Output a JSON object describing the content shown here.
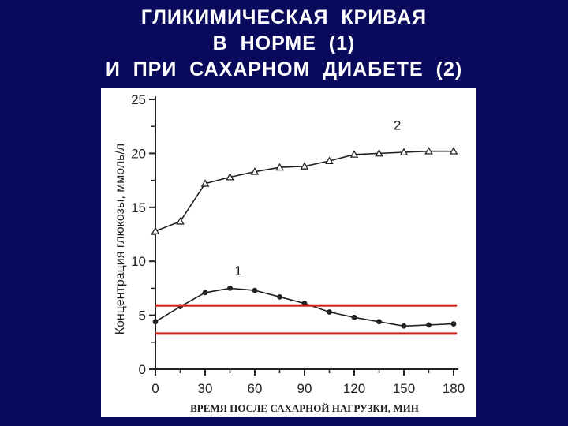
{
  "title": {
    "line1": "ГЛИКИМИЧЕСКАЯ  КРИВАЯ",
    "line2": "В  НОРМЕ  (1)",
    "line3": "И  ПРИ  САХАРНОМ  ДИАБЕТЕ  (2)"
  },
  "colors": {
    "background": "#0a0a5c",
    "title_text": "#ffffff",
    "panel": "#ffffff",
    "ink": "#222222",
    "reference_lines": "#d9231d"
  },
  "chart_data": {
    "type": "line",
    "xlabel": "ВРЕМЯ ПОСЛЕ САХАРНОЙ НАГРУЗКИ, МИН",
    "ylabel": "Концентрация глюкозы, ммоль/л",
    "xlim": [
      0,
      180
    ],
    "ylim": [
      0,
      25
    ],
    "xticks": [
      "0",
      "30",
      "60",
      "90",
      "120",
      "150",
      "180"
    ],
    "yticks": [
      "0",
      "5",
      "10",
      "15",
      "20",
      "25"
    ],
    "grid": false,
    "series": [
      {
        "name": "1",
        "marker": "circle",
        "x": [
          0,
          15,
          30,
          45,
          60,
          75,
          90,
          105,
          120,
          135,
          150,
          165,
          180
        ],
        "y": [
          4.4,
          5.8,
          7.1,
          7.5,
          7.3,
          6.7,
          6.1,
          5.3,
          4.8,
          4.4,
          4.0,
          4.1,
          4.2
        ]
      },
      {
        "name": "2",
        "marker": "triangle",
        "x": [
          0,
          15,
          30,
          45,
          60,
          75,
          90,
          105,
          120,
          135,
          150,
          165,
          180
        ],
        "y": [
          12.8,
          13.7,
          17.2,
          17.8,
          18.3,
          18.7,
          18.8,
          19.3,
          19.9,
          20.0,
          20.1,
          20.2,
          20.2
        ]
      }
    ],
    "annotations": [
      {
        "text": "1",
        "x": 50,
        "y": 8.7
      },
      {
        "text": "2",
        "x": 146,
        "y": 22.2
      }
    ],
    "reference_lines": [
      {
        "y": 5.9,
        "x_start": 0,
        "x_end": 182
      },
      {
        "y": 3.3,
        "x_start": 0,
        "x_end": 182
      }
    ]
  }
}
